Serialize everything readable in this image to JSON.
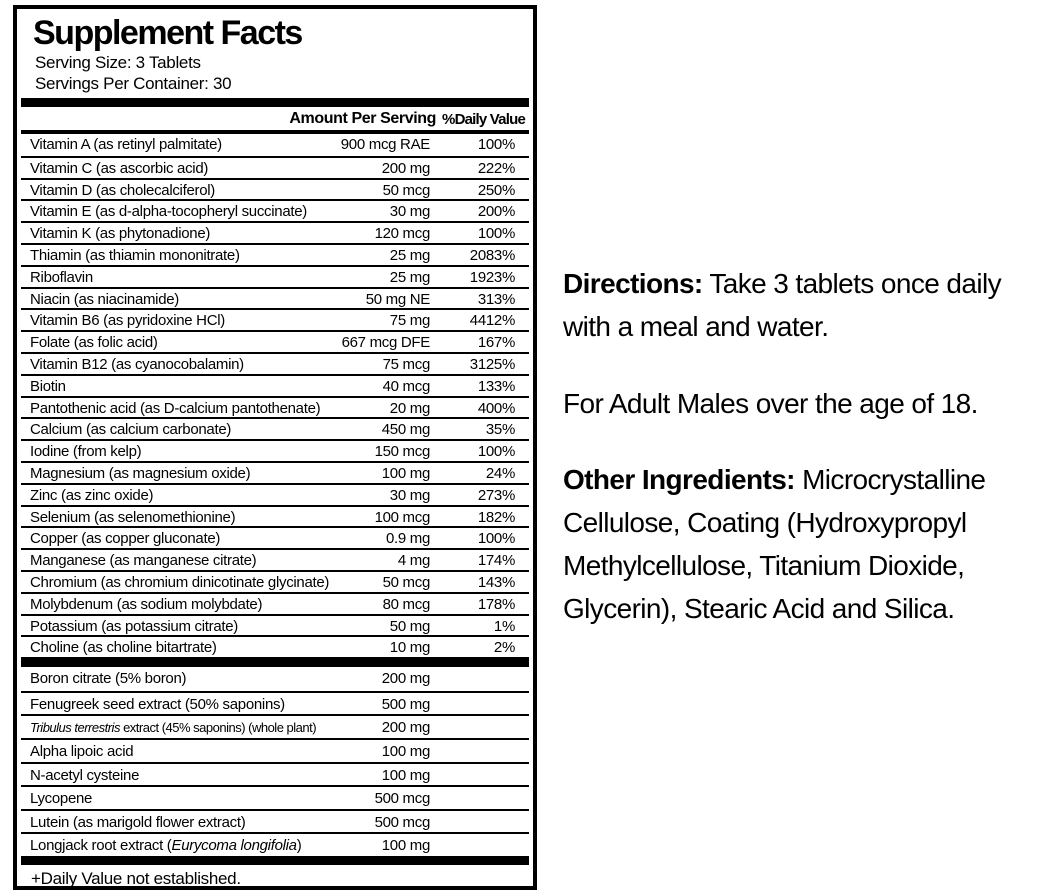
{
  "colors": {
    "ink": "#000000",
    "background": "#ffffff"
  },
  "label": {
    "title": "Supplement Facts",
    "serving_size": "Serving Size: 3 Tablets",
    "servings_per_container": "Servings Per Container: 30",
    "columns": {
      "amount": "Amount Per Serving",
      "daily_value": "%Daily Value"
    },
    "nutrients": [
      {
        "name": "Vitamin A (as retinyl palmitate)",
        "amount": "900 mcg RAE",
        "dv": "100%"
      },
      {
        "name": "Vitamin C (as ascorbic acid)",
        "amount": "200 mg",
        "dv": "222%"
      },
      {
        "name": "Vitamin D (as cholecalciferol)",
        "amount": "50 mcg",
        "dv": "250%"
      },
      {
        "name": "Vitamin E (as d-alpha-tocopheryl succinate)",
        "amount": "30 mg",
        "dv": "200%"
      },
      {
        "name": "Vitamin K (as phytonadione)",
        "amount": "120 mcg",
        "dv": "100%"
      },
      {
        "name": "Thiamin (as thiamin mononitrate)",
        "amount": "25 mg",
        "dv": "2083%"
      },
      {
        "name": "Riboflavin",
        "amount": "25 mg",
        "dv": "1923%"
      },
      {
        "name": "Niacin (as niacinamide)",
        "amount": "50 mg NE",
        "dv": "313%"
      },
      {
        "name": "Vitamin B6 (as pyridoxine HCl)",
        "amount": "75 mg",
        "dv": "4412%"
      },
      {
        "name": "Folate (as folic acid)",
        "amount": "667 mcg DFE",
        "dv": "167%"
      },
      {
        "name": "Vitamin B12 (as cyanocobalamin)",
        "amount": "75 mcg",
        "dv": "3125%"
      },
      {
        "name": "Biotin",
        "amount": "40 mcg",
        "dv": "133%"
      },
      {
        "name": "Pantothenic acid (as D-calcium pantothenate)",
        "amount": "20 mg",
        "dv": "400%"
      },
      {
        "name": "Calcium (as calcium carbonate)",
        "amount": "450 mg",
        "dv": "35%"
      },
      {
        "name": "Iodine (from kelp)",
        "amount": "150 mcg",
        "dv": "100%"
      },
      {
        "name": "Magnesium (as magnesium oxide)",
        "amount": "100 mg",
        "dv": "24%"
      },
      {
        "name": "Zinc (as zinc oxide)",
        "amount": "30 mg",
        "dv": "273%"
      },
      {
        "name": "Selenium (as selenomethionine)",
        "amount": "100 mcg",
        "dv": "182%"
      },
      {
        "name": "Copper (as copper gluconate)",
        "amount": "0.9 mg",
        "dv": "100%"
      },
      {
        "name": "Manganese (as manganese citrate)",
        "amount": "4 mg",
        "dv": "174%"
      },
      {
        "name": "Chromium (as chromium dinicotinate glycinate)",
        "amount": "50 mcg",
        "dv": "143%"
      },
      {
        "name": "Molybdenum (as sodium molybdate)",
        "amount": "80 mcg",
        "dv": "178%"
      },
      {
        "name": "Potassium (as potassium citrate)",
        "amount": "50 mg",
        "dv": "1%"
      },
      {
        "name": "Choline (as choline bitartrate)",
        "amount": "10 mg",
        "dv": "2%"
      }
    ],
    "botanicals": [
      {
        "name": "Boron citrate (5% boron)",
        "amount": "200 mg"
      },
      {
        "name": "Fenugreek seed extract (50% saponins)",
        "amount": "500 mg"
      },
      {
        "parts": [
          {
            "text": "Tribulus terrestris",
            "italic": true
          },
          {
            "text": " extract (45% saponins) (whole plant)",
            "italic": false
          }
        ],
        "amount": "200 mg",
        "condensed": true
      },
      {
        "name": "Alpha lipoic acid",
        "amount": "100 mg"
      },
      {
        "name": "N-acetyl cysteine",
        "amount": "100 mg"
      },
      {
        "name": "Lycopene",
        "amount": "500 mcg"
      },
      {
        "name": "Lutein (as marigold flower extract)",
        "amount": "500 mcg"
      },
      {
        "parts": [
          {
            "text": "Longjack root extract (",
            "italic": false
          },
          {
            "text": "Eurycoma longifolia",
            "italic": true
          },
          {
            "text": ")",
            "italic": false
          }
        ],
        "amount": "100 mg"
      }
    ],
    "footnote": "+Daily Value not established."
  },
  "info": {
    "directions_label": "Directions:",
    "directions_text": " Take 3 tablets once daily with a meal and water.",
    "audience_text": "For Adult Males over the age of 18.",
    "other_ingredients_label": "Other Ingredients:",
    "other_ingredients_text": " Microcrystalline Cellulose, Coating (Hydroxypropyl Methylcellulose, Titanium Dioxide, Glycerin), Stearic Acid and Silica."
  }
}
